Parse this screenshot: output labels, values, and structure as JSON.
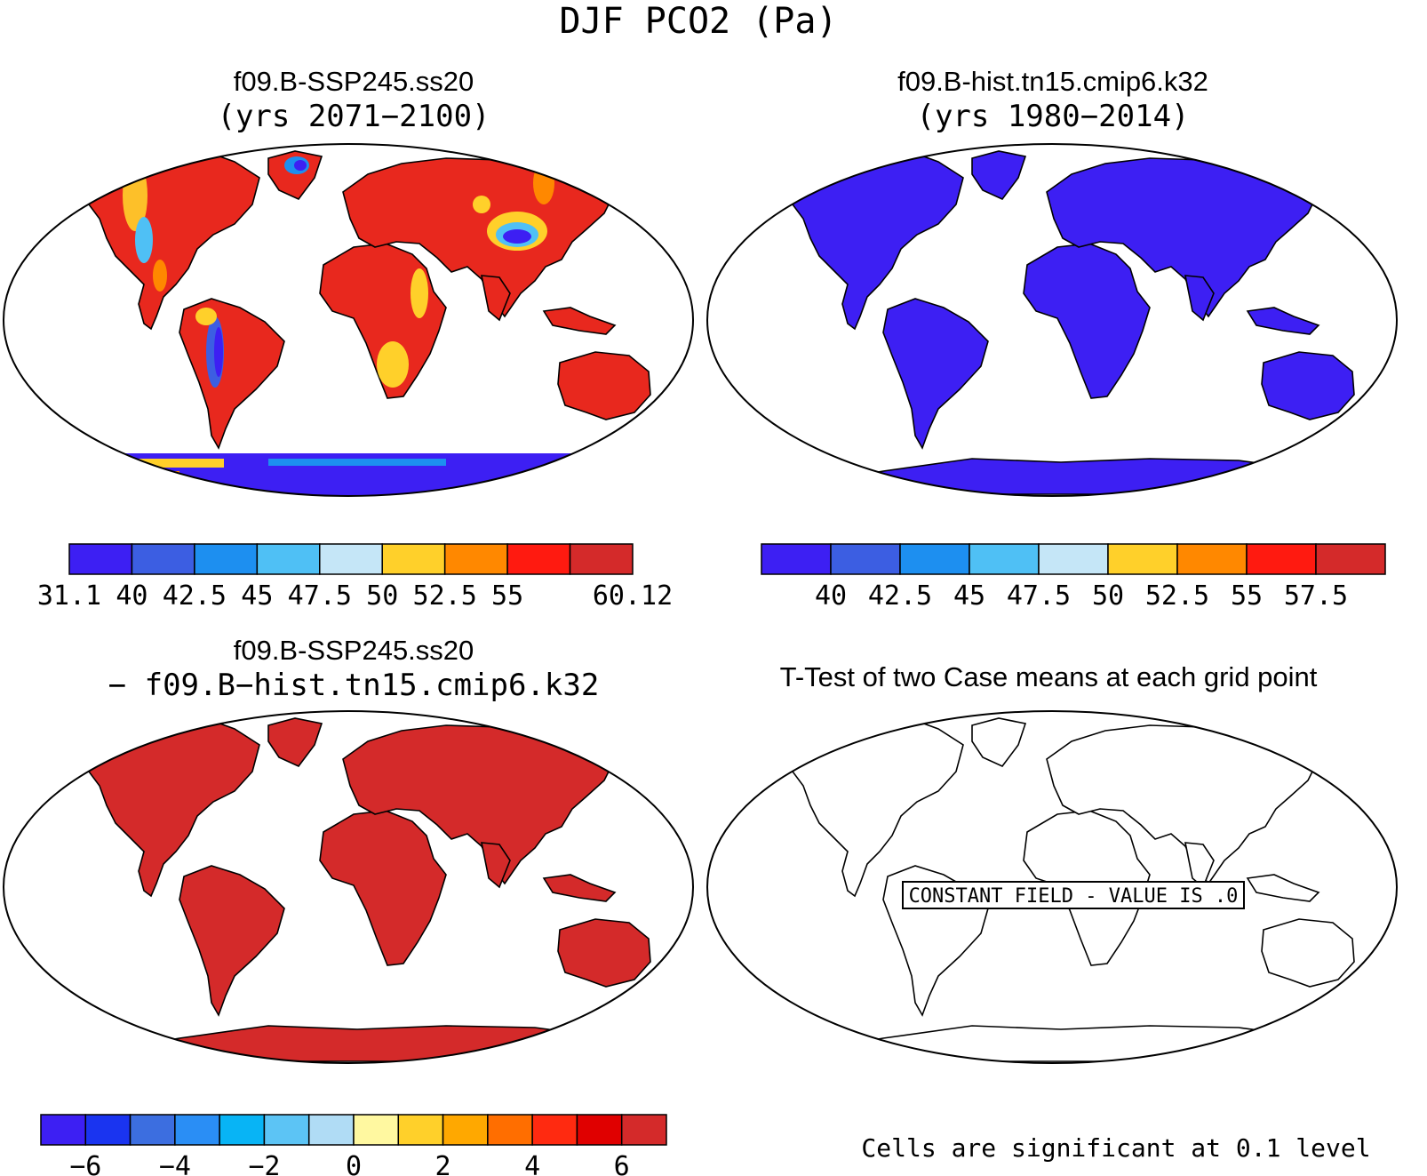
{
  "figure": {
    "main_title": "DJF PCO2 (Pa)",
    "footer_note": "Cells are significant at 0.1 level"
  },
  "panels": [
    {
      "id": "case1",
      "title_line1": "f09.B-SSP245.ss20",
      "title_line2": "(yrs 2071−2100)",
      "colorbar": {
        "colors": [
          "#3d1ff3",
          "#3c5ee2",
          "#1d8ff0",
          "#4fc0f5",
          "#c5e6f7",
          "#ffd02a",
          "#ff8800",
          "#ff1a10",
          "#d42a2a"
        ],
        "labels": [
          "31.1",
          "40",
          "42.5",
          "45",
          "47.5",
          "50",
          "52.5",
          "55",
          "60.12"
        ]
      }
    },
    {
      "id": "case2",
      "title_line1": "f09.B-hist.tn15.cmip6.k32",
      "title_line2": "(yrs 1980−2014)",
      "colorbar": {
        "colors": [
          "#3d1ff3",
          "#3c5ee2",
          "#1d8ff0",
          "#4fc0f5",
          "#c5e6f7",
          "#ffd02a",
          "#ff8800",
          "#ff1a10",
          "#d42a2a"
        ],
        "labels": [
          "40",
          "42.5",
          "45",
          "47.5",
          "50",
          "52.5",
          "55",
          "57.5"
        ]
      }
    },
    {
      "id": "difference",
      "title_line1": "f09.B-SSP245.ss20",
      "title_line2": "− f09.B−hist.tn15.cmip6.k32",
      "colorbar": {
        "colors": [
          "#3d1ff3",
          "#1a34f0",
          "#3c6ee0",
          "#2a8ef5",
          "#08b4f5",
          "#5cc4f5",
          "#b0dcf5",
          "#fff8a0",
          "#ffd02a",
          "#ffa800",
          "#ff6e00",
          "#ff2a10",
          "#e00000",
          "#d42a2a"
        ],
        "labels": [
          "−6",
          "−4",
          "−2",
          "0",
          "2",
          "4",
          "6"
        ]
      }
    },
    {
      "id": "ttest",
      "title_line1": "T-Test of two Case means at each grid point",
      "constant_field_label": "CONSTANT FIELD - VALUE IS .0"
    }
  ],
  "colors": {
    "land_case1_dominant": "#e8281e",
    "land_case2": "#3d1ff3",
    "land_difference": "#d42a2a",
    "coastline": "#000000"
  }
}
